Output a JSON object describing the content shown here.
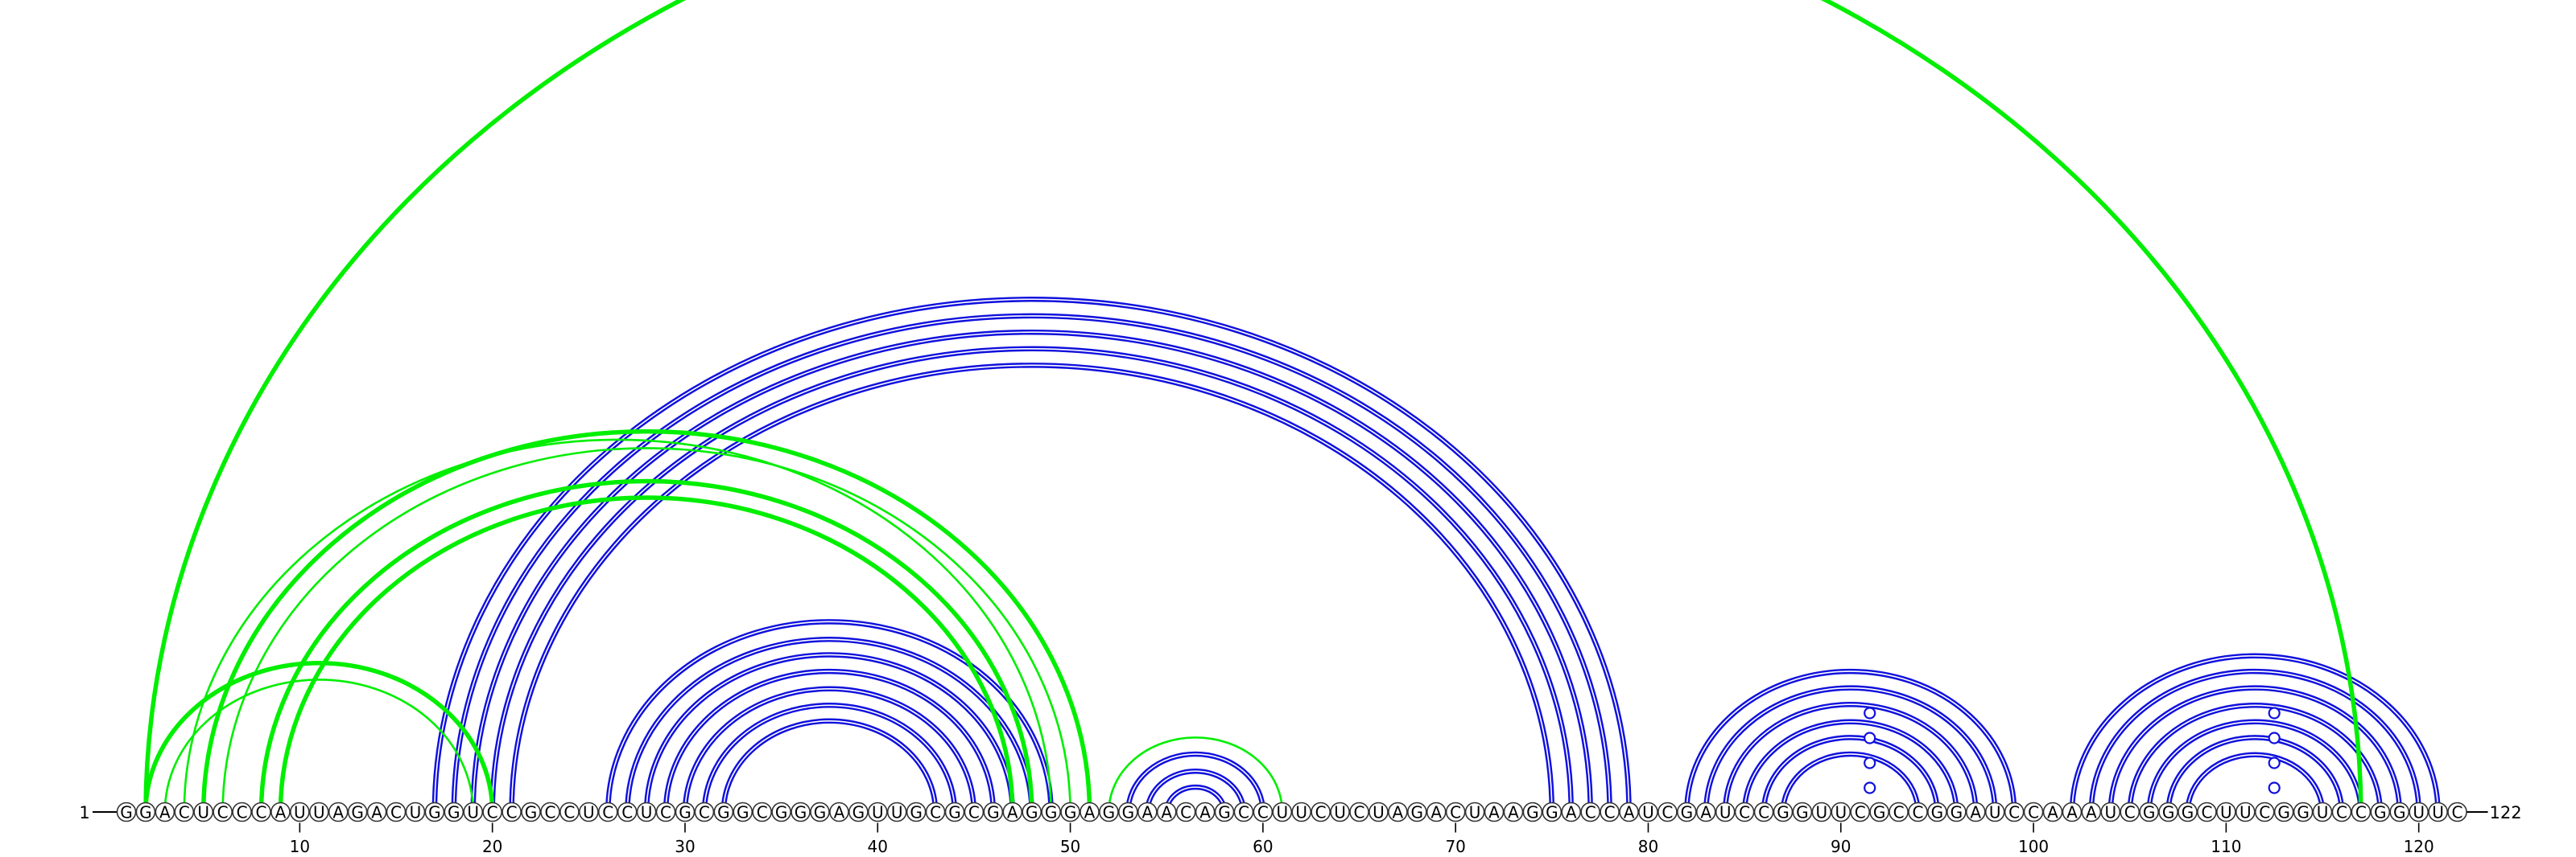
{
  "diagram": {
    "sequence": "GGACUCCCAUUAGACUGGUCCGCCUCCUCGCGGCGGGAGUUGCGCGAGGGAGGAACAGCCUUCUCUAGACUAAGGACCAUCGAUCCGGUUCGCCGGAUCCAAAUCGGGCUUCGGUCCGGUUC",
    "start_label": "1",
    "end_label": "122",
    "tick_labels": [
      "10",
      "20",
      "30",
      "40",
      "50",
      "60",
      "70",
      "80",
      "90",
      "100",
      "110",
      "120"
    ],
    "colors": {
      "primary": "#1010dd",
      "secondary": "#00ee00",
      "text": "#000000",
      "nucleotide_stroke": "#333333"
    },
    "helices": [
      {
        "color": "primary",
        "style": "double",
        "i": 17,
        "j": 79,
        "n": 5
      },
      {
        "color": "primary",
        "style": "double",
        "i": 26,
        "j": 49,
        "n": 7
      },
      {
        "color": "primary",
        "style": "double",
        "i": 53,
        "j": 60,
        "n": 3
      },
      {
        "color": "primary",
        "style": "double",
        "i": 82,
        "j": 99,
        "n": 6
      },
      {
        "color": "primary",
        "style": "double",
        "i": 102,
        "j": 121,
        "n": 7
      },
      {
        "color": "secondary",
        "style": "single",
        "i": 52,
        "j": 61,
        "n": 1
      },
      {
        "color": "secondary",
        "style": "bold",
        "i": 2,
        "j": 117,
        "n": 1
      },
      {
        "color": "secondary",
        "style": "bold",
        "i": 2,
        "j": 20,
        "n": 1
      },
      {
        "color": "secondary",
        "style": "single",
        "i": 3,
        "j": 19,
        "n": 1
      },
      {
        "color": "secondary",
        "style": "single",
        "i": 4,
        "j": 49,
        "n": 1
      },
      {
        "color": "secondary",
        "style": "bold",
        "i": 5,
        "j": 51,
        "n": 1
      },
      {
        "color": "secondary",
        "style": "single",
        "i": 6,
        "j": 50,
        "n": 1
      },
      {
        "color": "secondary",
        "style": "bold",
        "i": 8,
        "j": 48,
        "n": 1
      },
      {
        "color": "secondary",
        "style": "bold",
        "i": 9,
        "j": 47,
        "n": 1
      }
    ],
    "loop_markers": [
      91,
      112
    ],
    "loop_marker_heights": [
      0,
      1,
      2,
      3
    ]
  }
}
